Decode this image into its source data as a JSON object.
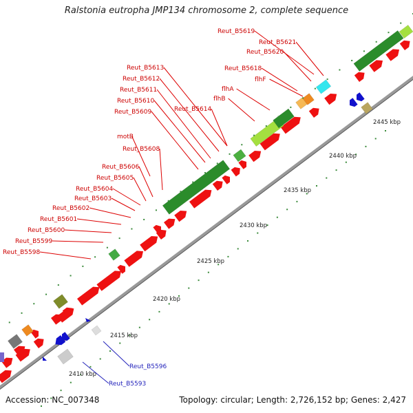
{
  "title": "Ralstonia eutropha JMP134 chromosome 2, complete sequence",
  "footer": {
    "accession": "Accession: NC_007348",
    "summary": "Topology: circular; Length: 2,726,152 bp; Genes: 2,427"
  },
  "colors": {
    "gene": "#ee1111",
    "label": "#cc0000",
    "blue_gene": "#1111cc",
    "blue_label": "#2222bb",
    "track_dark_green": "#2b8c2b",
    "track_light_green": "#a4e040",
    "track_olive": "#7f8c2a",
    "track_orange": "#f6b955",
    "track_cyan": "#33e6ee",
    "track_gray": "#777777",
    "backbone": "#999999",
    "tick_dot": "#3a8a3a"
  },
  "tick_labels": [
    "2410 kbp",
    "2415 kbp",
    "2420 kbp",
    "2425 kbp",
    "2430 kbp",
    "2435 kbp",
    "2440 kbp",
    "2445 kbp"
  ],
  "gene_labels_red": [
    "Reut_B5619",
    "Reut_B5621",
    "Reut_B5620",
    "Reut_B5618",
    "flhF",
    "flhA",
    "flhB",
    "Reut_B5614",
    "Reut_B5613",
    "Reut_B5612",
    "Reut_B5611",
    "Reut_B5610",
    "Reut_B5609",
    "motB",
    "Reut_B5608",
    "Reut_B5606",
    "Reut_B5605",
    "Reut_B5604",
    "Reut_B5603",
    "Reut_B5602",
    "Reut_B5601",
    "Reut_B5600",
    "Reut_B5599",
    "Reut_B5598"
  ],
  "gene_labels_blue": [
    "Reut_B5596",
    "Reut_B5593"
  ]
}
